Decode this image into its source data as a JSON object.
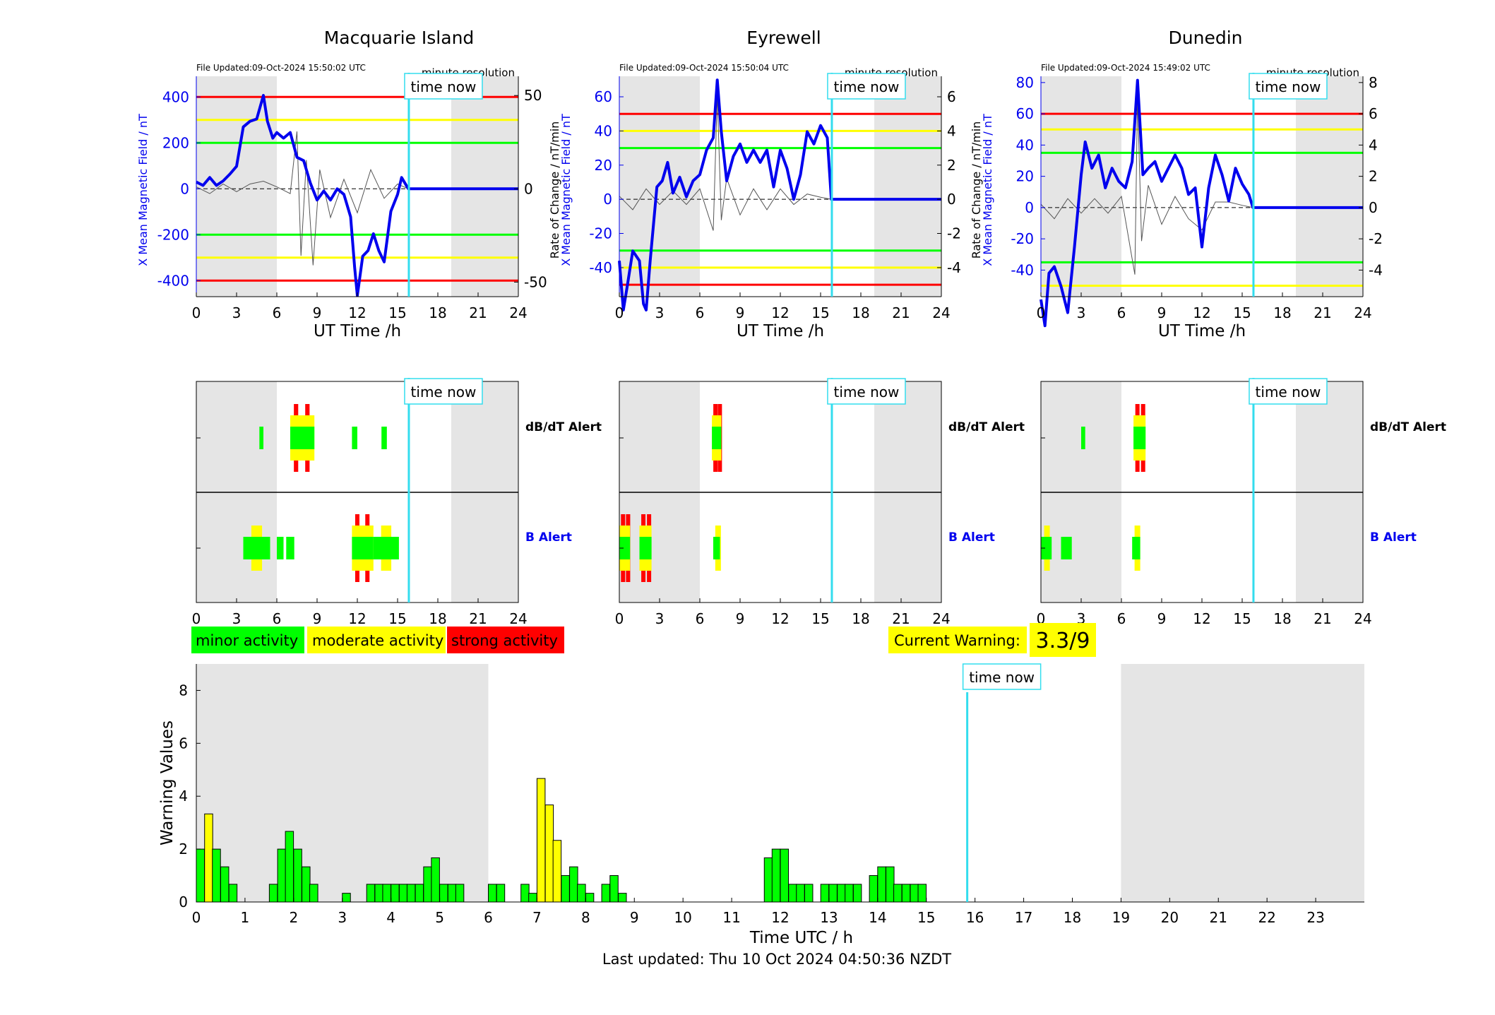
{
  "figure": {
    "bg_shade_color": "#e5e5e5",
    "now_line_color": "#33ddee",
    "now_label": "time now"
  },
  "stations": [
    {
      "name": "Macquarie Island",
      "file_updated": "File Updated:09-Oct-2024 15:50:02 UTC",
      "resolution": "minute resolution",
      "left_ylabel": "X Mean Magnetic Field / nT",
      "right_ylabel": "",
      "ylim": [
        -470,
        490
      ],
      "yticks": [
        -400,
        -200,
        0,
        200,
        400
      ],
      "right_ylim": [
        -57.8,
        60.3
      ],
      "right_yticks": [
        -50,
        0,
        50
      ],
      "thresholds": {
        "red": 400,
        "yellow": 300,
        "green": 200
      },
      "field_trace": [
        [
          0,
          0.06
        ],
        [
          0.5,
          0.03
        ],
        [
          1,
          0.1
        ],
        [
          1.5,
          0.03
        ],
        [
          2,
          0.07
        ],
        [
          2.5,
          0.13
        ],
        [
          3,
          0.2
        ],
        [
          3.5,
          0.55
        ],
        [
          4,
          0.6
        ],
        [
          4.5,
          0.62
        ],
        [
          5,
          0.83
        ],
        [
          5.3,
          0.6
        ],
        [
          5.7,
          0.45
        ],
        [
          6,
          0.5
        ],
        [
          6.5,
          0.45
        ],
        [
          7,
          0.5
        ],
        [
          7.5,
          0.28
        ],
        [
          8,
          0.25
        ],
        [
          8.5,
          0.05
        ],
        [
          9,
          -0.1
        ],
        [
          9.5,
          -0.02
        ],
        [
          10,
          -0.1
        ],
        [
          10.5,
          0.0
        ],
        [
          11,
          -0.05
        ],
        [
          11.5,
          -0.25
        ],
        [
          11.8,
          -0.7
        ],
        [
          12,
          -0.95
        ],
        [
          12.4,
          -0.6
        ],
        [
          12.8,
          -0.55
        ],
        [
          13.2,
          -0.4
        ],
        [
          13.6,
          -0.55
        ],
        [
          14,
          -0.65
        ],
        [
          14.5,
          -0.2
        ],
        [
          15,
          -0.05
        ],
        [
          15.3,
          0.1
        ],
        [
          15.8,
          0.0
        ],
        [
          24,
          0.0
        ]
      ],
      "rate_trace": [
        [
          0,
          0.02
        ],
        [
          1,
          -0.05
        ],
        [
          2,
          0.05
        ],
        [
          3,
          -0.03
        ],
        [
          4,
          0.05
        ],
        [
          5,
          0.08
        ],
        [
          6,
          0.02
        ],
        [
          7,
          -0.05
        ],
        [
          7.5,
          0.6
        ],
        [
          7.8,
          -0.7
        ],
        [
          8.2,
          0.3
        ],
        [
          8.7,
          -0.8
        ],
        [
          9.2,
          0.2
        ],
        [
          10,
          -0.3
        ],
        [
          11,
          0.1
        ],
        [
          12,
          -0.25
        ],
        [
          13,
          0.2
        ],
        [
          14,
          -0.1
        ],
        [
          15,
          0.05
        ],
        [
          15.8,
          0.0
        ]
      ],
      "alerts": {
        "dbdt_label": "dB/dT Alert",
        "b_label": "B Alert",
        "dbdt_blocks": [
          [
            4.7,
            5.0,
            "minor"
          ],
          [
            7.0,
            8.8,
            "strong"
          ],
          [
            11.6,
            12.0,
            "minor"
          ],
          [
            13.8,
            14.2,
            "minor"
          ]
        ],
        "b_blocks": [
          [
            3.5,
            5.5,
            "moderate"
          ],
          [
            6.0,
            6.5,
            "minor"
          ],
          [
            6.7,
            7.3,
            "minor"
          ],
          [
            11.6,
            13.2,
            "strong"
          ],
          [
            13.2,
            15.1,
            "moderate"
          ]
        ]
      }
    },
    {
      "name": "Eyrewell",
      "file_updated": "File Updated:09-Oct-2024 15:50:04 UTC",
      "resolution": "minute resolution",
      "left_ylabel": "X Mean Magnetic Field / nT",
      "right_ylabel": "Rate of Change / nT/min",
      "ylim": [
        -57,
        72
      ],
      "yticks": [
        -40,
        -20,
        0,
        20,
        40,
        60
      ],
      "right_ylim": [
        -5.7,
        7.2
      ],
      "right_yticks": [
        -4,
        -2,
        0,
        2,
        4,
        6
      ],
      "thresholds": {
        "red": 50,
        "yellow": 40,
        "green": 30
      },
      "field_trace": [
        [
          0,
          -0.5
        ],
        [
          0.3,
          -0.9
        ],
        [
          0.6,
          -0.7
        ],
        [
          1,
          -0.42
        ],
        [
          1.5,
          -0.5
        ],
        [
          1.8,
          -0.85
        ],
        [
          2,
          -0.9
        ],
        [
          2.3,
          -0.5
        ],
        [
          2.8,
          0.1
        ],
        [
          3.2,
          0.15
        ],
        [
          3.6,
          0.3
        ],
        [
          4,
          0.05
        ],
        [
          4.5,
          0.18
        ],
        [
          5,
          0.02
        ],
        [
          5.5,
          0.15
        ],
        [
          6,
          0.2
        ],
        [
          6.5,
          0.4
        ],
        [
          7.0,
          0.5
        ],
        [
          7.3,
          0.97
        ],
        [
          7.6,
          0.55
        ],
        [
          8,
          0.15
        ],
        [
          8.5,
          0.35
        ],
        [
          9,
          0.45
        ],
        [
          9.5,
          0.3
        ],
        [
          10,
          0.4
        ],
        [
          10.5,
          0.3
        ],
        [
          11,
          0.4
        ],
        [
          11.5,
          0.1
        ],
        [
          12,
          0.4
        ],
        [
          12.5,
          0.25
        ],
        [
          13,
          0.0
        ],
        [
          13.5,
          0.2
        ],
        [
          14,
          0.55
        ],
        [
          14.5,
          0.45
        ],
        [
          15,
          0.6
        ],
        [
          15.5,
          0.5
        ],
        [
          15.8,
          0.0
        ],
        [
          24,
          0.0
        ]
      ],
      "rate_trace": [
        [
          0,
          0.03
        ],
        [
          1,
          -0.1
        ],
        [
          2,
          0.1
        ],
        [
          3,
          -0.05
        ],
        [
          4,
          0.08
        ],
        [
          5,
          -0.05
        ],
        [
          6,
          0.1
        ],
        [
          7,
          -0.3
        ],
        [
          7.3,
          1.0
        ],
        [
          7.6,
          -0.2
        ],
        [
          8,
          0.2
        ],
        [
          9,
          -0.15
        ],
        [
          10,
          0.1
        ],
        [
          11,
          -0.1
        ],
        [
          12,
          0.1
        ],
        [
          13,
          -0.05
        ],
        [
          14,
          0.05
        ],
        [
          15,
          0.02
        ],
        [
          15.8,
          0.0
        ]
      ],
      "alerts": {
        "dbdt_label": "dB/dT Alert",
        "b_label": "B Alert",
        "dbdt_blocks": [
          [
            6.9,
            7.6,
            "strong"
          ]
        ],
        "b_blocks": [
          [
            0.0,
            0.8,
            "strong"
          ],
          [
            1.5,
            2.4,
            "strong"
          ],
          [
            7.0,
            7.5,
            "moderate"
          ]
        ]
      }
    },
    {
      "name": "Dunedin",
      "file_updated": "File Updated:09-Oct-2024 15:49:02 UTC",
      "resolution": "minute resolution",
      "left_ylabel": "X Mean Magnetic Field / nT",
      "right_ylabel": "Rate of Change / nT/min",
      "ylim": [
        -57,
        84
      ],
      "yticks": [
        -40,
        -20,
        0,
        20,
        40,
        60,
        80
      ],
      "right_ylim": [
        -5.7,
        8.4
      ],
      "right_yticks": [
        -4,
        -2,
        0,
        2,
        4,
        6,
        8
      ],
      "thresholds": {
        "red": 60,
        "yellow": 50,
        "green": 35
      },
      "field_trace": [
        [
          0,
          -0.7
        ],
        [
          0.3,
          -0.9
        ],
        [
          0.6,
          -0.5
        ],
        [
          1,
          -0.45
        ],
        [
          1.5,
          -0.6
        ],
        [
          2,
          -0.8
        ],
        [
          2.5,
          -0.3
        ],
        [
          3,
          0.25
        ],
        [
          3.3,
          0.5
        ],
        [
          3.8,
          0.3
        ],
        [
          4.3,
          0.4
        ],
        [
          4.8,
          0.15
        ],
        [
          5.3,
          0.3
        ],
        [
          5.8,
          0.2
        ],
        [
          6.3,
          0.15
        ],
        [
          6.8,
          0.35
        ],
        [
          7.2,
          0.97
        ],
        [
          7.6,
          0.25
        ],
        [
          8,
          0.3
        ],
        [
          8.5,
          0.35
        ],
        [
          9,
          0.2
        ],
        [
          9.5,
          0.3
        ],
        [
          10,
          0.4
        ],
        [
          10.5,
          0.3
        ],
        [
          11,
          0.1
        ],
        [
          11.5,
          0.15
        ],
        [
          12,
          -0.3
        ],
        [
          12.5,
          0.15
        ],
        [
          13,
          0.4
        ],
        [
          13.5,
          0.25
        ],
        [
          14,
          0.05
        ],
        [
          14.5,
          0.3
        ],
        [
          15,
          0.18
        ],
        [
          15.5,
          0.1
        ],
        [
          15.8,
          0.0
        ],
        [
          24,
          0.0
        ]
      ],
      "rate_trace": [
        [
          0,
          0.03
        ],
        [
          1,
          -0.1
        ],
        [
          2,
          0.08
        ],
        [
          3,
          -0.05
        ],
        [
          4,
          0.08
        ],
        [
          5,
          -0.05
        ],
        [
          6,
          0.1
        ],
        [
          7,
          -0.6
        ],
        [
          7.2,
          1.0
        ],
        [
          7.5,
          -0.3
        ],
        [
          8,
          0.2
        ],
        [
          9,
          -0.15
        ],
        [
          10,
          0.1
        ],
        [
          11,
          -0.1
        ],
        [
          12,
          -0.2
        ],
        [
          13,
          0.05
        ],
        [
          14,
          0.05
        ],
        [
          15,
          0.02
        ],
        [
          15.8,
          0.0
        ]
      ],
      "alerts": {
        "dbdt_label": "dB/dT Alert",
        "b_label": "B Alert",
        "dbdt_blocks": [
          [
            3.0,
            3.3,
            "minor"
          ],
          [
            6.9,
            7.8,
            "strong"
          ]
        ],
        "b_blocks": [
          [
            0.0,
            0.8,
            "moderate"
          ],
          [
            1.5,
            2.3,
            "minor"
          ],
          [
            6.8,
            7.4,
            "moderate"
          ]
        ]
      }
    }
  ],
  "top_axis": {
    "xlabel": "UT Time /h",
    "xticks": [
      0,
      3,
      6,
      9,
      12,
      15,
      18,
      21,
      24
    ],
    "xlim": [
      0,
      24
    ],
    "night_shade": [
      [
        0,
        6
      ],
      [
        19,
        24
      ]
    ],
    "time_now": 15.84
  },
  "legend": {
    "minor": {
      "label": "minor activity",
      "color": "#00ff00"
    },
    "moderate": {
      "label": "moderate activity",
      "color": "#ffff00"
    },
    "strong": {
      "label": "strong activity",
      "color": "#ff0000"
    }
  },
  "current_warning": {
    "label": "Current Warning:",
    "value": "3.3/9"
  },
  "chart_data": {
    "type": "bar",
    "title": "",
    "xlabel": "Time UTC / h",
    "ylabel": "Warning Values",
    "xlim": [
      0,
      24
    ],
    "ylim": [
      0,
      9
    ],
    "xticks": [
      0,
      1,
      2,
      3,
      4,
      5,
      6,
      7,
      8,
      9,
      10,
      11,
      12,
      13,
      14,
      15,
      16,
      17,
      18,
      19,
      20,
      21,
      22,
      23
    ],
    "yticks": [
      0,
      2,
      4,
      6,
      8
    ],
    "bar_width_h": 0.1667,
    "night_shade": [
      [
        0,
        6
      ],
      [
        19,
        24
      ]
    ],
    "time_now": 15.84,
    "bars": [
      {
        "x": 0.0,
        "value": 2.0,
        "level": "minor"
      },
      {
        "x": 0.17,
        "value": 3.33,
        "level": "moderate"
      },
      {
        "x": 0.33,
        "value": 2.0,
        "level": "minor"
      },
      {
        "x": 0.5,
        "value": 1.33,
        "level": "minor"
      },
      {
        "x": 0.67,
        "value": 0.67,
        "level": "minor"
      },
      {
        "x": 1.5,
        "value": 0.67,
        "level": "minor"
      },
      {
        "x": 1.67,
        "value": 2.0,
        "level": "minor"
      },
      {
        "x": 1.83,
        "value": 2.67,
        "level": "minor"
      },
      {
        "x": 2.0,
        "value": 2.0,
        "level": "minor"
      },
      {
        "x": 2.17,
        "value": 1.33,
        "level": "minor"
      },
      {
        "x": 2.33,
        "value": 0.67,
        "level": "minor"
      },
      {
        "x": 3.0,
        "value": 0.33,
        "level": "minor"
      },
      {
        "x": 3.5,
        "value": 0.67,
        "level": "minor"
      },
      {
        "x": 3.67,
        "value": 0.67,
        "level": "minor"
      },
      {
        "x": 3.83,
        "value": 0.67,
        "level": "minor"
      },
      {
        "x": 4.0,
        "value": 0.67,
        "level": "minor"
      },
      {
        "x": 4.17,
        "value": 0.67,
        "level": "minor"
      },
      {
        "x": 4.33,
        "value": 0.67,
        "level": "minor"
      },
      {
        "x": 4.5,
        "value": 0.67,
        "level": "minor"
      },
      {
        "x": 4.67,
        "value": 1.33,
        "level": "minor"
      },
      {
        "x": 4.83,
        "value": 1.67,
        "level": "minor"
      },
      {
        "x": 5.0,
        "value": 0.67,
        "level": "minor"
      },
      {
        "x": 5.17,
        "value": 0.67,
        "level": "minor"
      },
      {
        "x": 5.33,
        "value": 0.67,
        "level": "minor"
      },
      {
        "x": 6.0,
        "value": 0.67,
        "level": "minor"
      },
      {
        "x": 6.17,
        "value": 0.67,
        "level": "minor"
      },
      {
        "x": 6.67,
        "value": 0.67,
        "level": "minor"
      },
      {
        "x": 6.83,
        "value": 0.33,
        "level": "minor"
      },
      {
        "x": 7.0,
        "value": 4.67,
        "level": "moderate"
      },
      {
        "x": 7.17,
        "value": 3.67,
        "level": "moderate"
      },
      {
        "x": 7.33,
        "value": 2.33,
        "level": "moderate"
      },
      {
        "x": 7.5,
        "value": 1.0,
        "level": "minor"
      },
      {
        "x": 7.67,
        "value": 1.33,
        "level": "minor"
      },
      {
        "x": 7.83,
        "value": 0.67,
        "level": "minor"
      },
      {
        "x": 8.0,
        "value": 0.33,
        "level": "minor"
      },
      {
        "x": 8.33,
        "value": 0.67,
        "level": "minor"
      },
      {
        "x": 8.5,
        "value": 1.0,
        "level": "minor"
      },
      {
        "x": 8.67,
        "value": 0.33,
        "level": "minor"
      },
      {
        "x": 11.67,
        "value": 1.67,
        "level": "minor"
      },
      {
        "x": 11.83,
        "value": 2.0,
        "level": "minor"
      },
      {
        "x": 12.0,
        "value": 2.0,
        "level": "minor"
      },
      {
        "x": 12.17,
        "value": 0.67,
        "level": "minor"
      },
      {
        "x": 12.33,
        "value": 0.67,
        "level": "minor"
      },
      {
        "x": 12.5,
        "value": 0.67,
        "level": "minor"
      },
      {
        "x": 12.83,
        "value": 0.67,
        "level": "minor"
      },
      {
        "x": 13.0,
        "value": 0.67,
        "level": "minor"
      },
      {
        "x": 13.17,
        "value": 0.67,
        "level": "minor"
      },
      {
        "x": 13.33,
        "value": 0.67,
        "level": "minor"
      },
      {
        "x": 13.5,
        "value": 0.67,
        "level": "minor"
      },
      {
        "x": 13.83,
        "value": 1.0,
        "level": "minor"
      },
      {
        "x": 14.0,
        "value": 1.33,
        "level": "minor"
      },
      {
        "x": 14.17,
        "value": 1.33,
        "level": "minor"
      },
      {
        "x": 14.33,
        "value": 0.67,
        "level": "minor"
      },
      {
        "x": 14.5,
        "value": 0.67,
        "level": "minor"
      },
      {
        "x": 14.67,
        "value": 0.67,
        "level": "minor"
      },
      {
        "x": 14.83,
        "value": 0.67,
        "level": "minor"
      }
    ]
  },
  "last_updated": "Last updated: Thu 10 Oct 2024 04:50:36 NZDT"
}
